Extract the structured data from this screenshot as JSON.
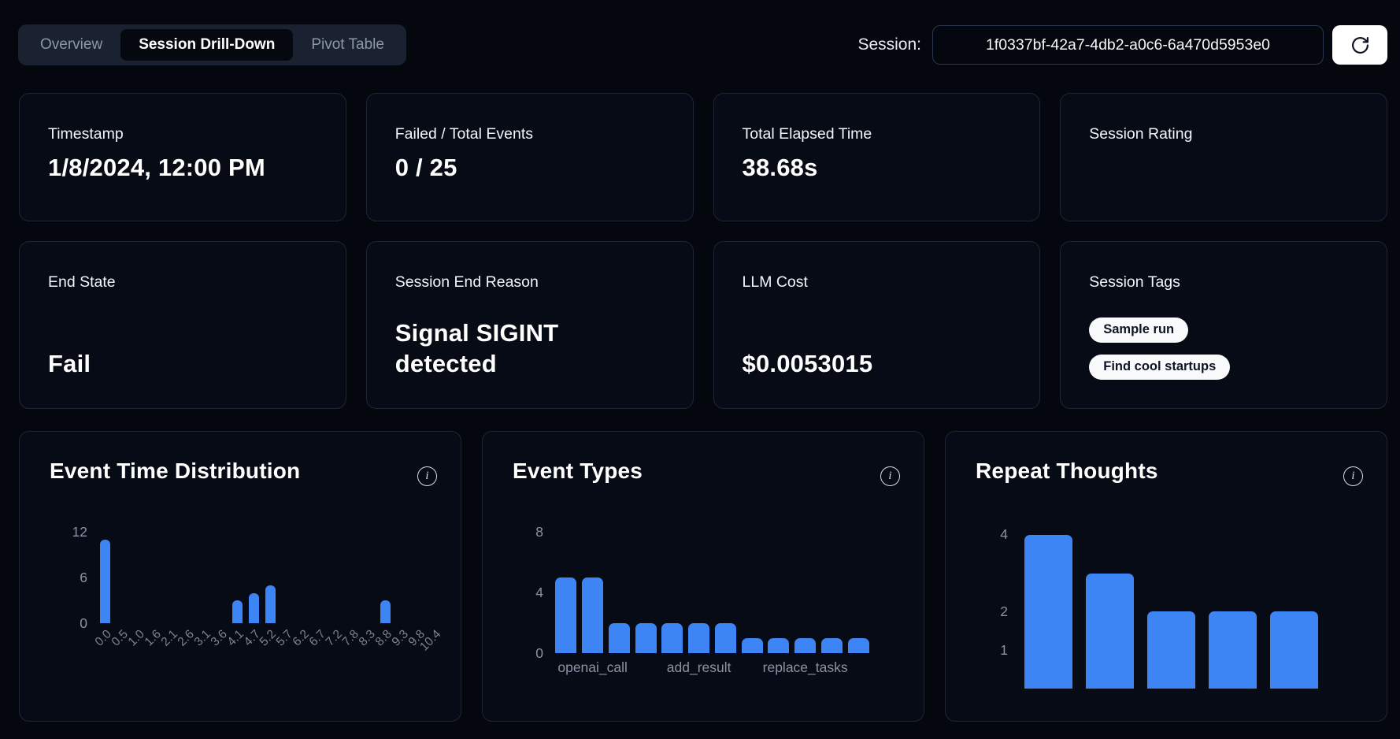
{
  "header": {
    "tabs": [
      {
        "label": "Overview",
        "active": false
      },
      {
        "label": "Session Drill-Down",
        "active": true
      },
      {
        "label": "Pivot Table",
        "active": false
      }
    ],
    "session_label": "Session:",
    "session_id": "1f0337bf-42a7-4db2-a0c6-6a470d5953e0",
    "refresh_icon": "refresh-icon"
  },
  "stat_cards": {
    "row1": [
      {
        "label": "Timestamp",
        "value": "1/8/2024, 12:00 PM"
      },
      {
        "label": "Failed / Total Events",
        "value": "0 / 25"
      },
      {
        "label": "Total Elapsed Time",
        "value": "38.68s"
      },
      {
        "label": "Session Rating",
        "value": ""
      }
    ],
    "row2": [
      {
        "label": "End State",
        "value": "Fail"
      },
      {
        "label": "Session End Reason",
        "value": "Signal SIGINT detected"
      },
      {
        "label": "LLM Cost",
        "value": "$0.0053015"
      },
      {
        "label": "Session Tags",
        "value": "",
        "tags": [
          "Sample run",
          "Find cool startups"
        ]
      }
    ]
  },
  "chart_data": [
    {
      "type": "bar",
      "title": "Event Time Distribution",
      "info_icon": "info-icon",
      "categories": [
        "0.0",
        "0.5",
        "1.0",
        "1.6",
        "2.1",
        "2.6",
        "3.1",
        "3.6",
        "4.1",
        "4.7",
        "5.2",
        "5.7",
        "6.2",
        "6.7",
        "7.2",
        "7.8",
        "8.3",
        "8.8",
        "9.3",
        "9.8",
        "10.4"
      ],
      "values": [
        11,
        0,
        0,
        0,
        0,
        0,
        0,
        0,
        3,
        4,
        5,
        0,
        0,
        0,
        0,
        0,
        0,
        3,
        0,
        0,
        0
      ],
      "yticks": [
        0,
        6,
        12
      ],
      "ymax": 12.7,
      "xlabel_rotation": -45,
      "bar_color": "#3d85f4",
      "grid": false,
      "legend": false
    },
    {
      "type": "bar",
      "title": "Event Types",
      "info_icon": "info-icon",
      "values": [
        5,
        5,
        2,
        2,
        2,
        2,
        2,
        1,
        1,
        1,
        1,
        1
      ],
      "yticks": [
        0,
        4,
        8
      ],
      "ymax": 8.6,
      "xtick_labels": [
        {
          "index": 1,
          "text": "openai_call"
        },
        {
          "index": 5,
          "text": "add_result"
        },
        {
          "index": 9,
          "text": "replace_tasks"
        }
      ],
      "bar_color": "#3d85f4",
      "grid": false,
      "legend": false
    },
    {
      "type": "bar",
      "title": "Repeat Thoughts",
      "info_icon": "info-icon",
      "values": [
        4,
        3,
        2,
        2,
        2
      ],
      "yticks": [
        1,
        2,
        4
      ],
      "ymax": 4.3,
      "bar_color": "#3d85f4",
      "grid": false,
      "legend": false
    }
  ],
  "colors": {
    "accent_blue": "#3d85f4",
    "page_bg": "#04070e",
    "card_bg": "#070b15",
    "card_border": "#1d2636",
    "muted_text": "#8a93a4",
    "pill_bg": "#f8fafc",
    "pill_text": "#0d1424"
  }
}
